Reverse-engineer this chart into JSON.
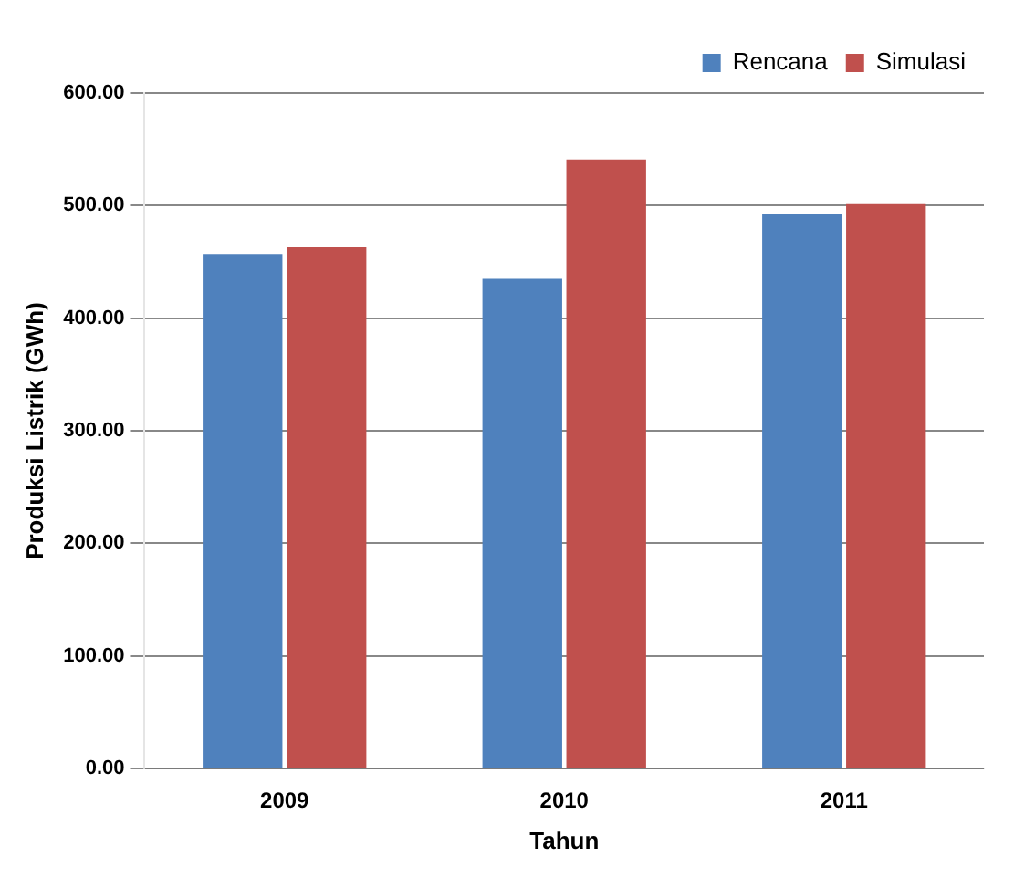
{
  "chart_data": {
    "type": "bar",
    "xlabel": "Tahun",
    "ylabel": "Produksi Listrik (GWh)",
    "categories": [
      "2009",
      "2010",
      "2011"
    ],
    "series": [
      {
        "name": "Rencana",
        "color": "#4f81bd",
        "values": [
          457,
          435,
          493
        ]
      },
      {
        "name": "Simulasi",
        "color": "#c0504d",
        "values": [
          463,
          541,
          502
        ]
      }
    ],
    "ylim": [
      0,
      600
    ],
    "yticks": [
      {
        "value": 0,
        "label": "0.00"
      },
      {
        "value": 100,
        "label": "100.00"
      },
      {
        "value": 200,
        "label": "200.00"
      },
      {
        "value": 300,
        "label": "300.00"
      },
      {
        "value": 400,
        "label": "400.00"
      },
      {
        "value": 500,
        "label": "500.00"
      },
      {
        "value": 600,
        "label": "600.00"
      }
    ],
    "grid": "y",
    "legend": "top right"
  }
}
